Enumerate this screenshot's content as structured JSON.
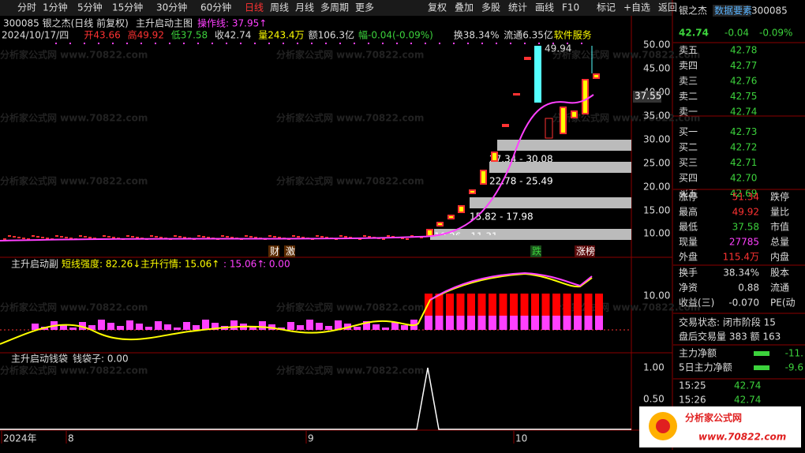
{
  "toolbar": {
    "periods": [
      "分时",
      "1分钟",
      "5分钟",
      "15分钟",
      "30分钟",
      "60分钟",
      "日线",
      "周线",
      "月线",
      "多周期",
      "更多"
    ],
    "tools": [
      "复权",
      "叠加",
      "多股",
      "统计",
      "画线",
      "F10",
      "标记",
      "+自选",
      "返回"
    ]
  },
  "header": {
    "code_name": "300085 银之杰(日线 前复权)",
    "indicator": "主升启动主图",
    "op_label": "操作线: 37.95↑",
    "info": [
      "2024/10/17/四",
      "开43.66",
      "高49.92",
      "低37.58",
      "收42.74",
      "量243.4万",
      "额106.3亿",
      "幅-0.04(-0.09%)",
      "换38.34%",
      "流通6.35亿",
      "软件服务"
    ]
  },
  "main": {
    "yticks": [
      "50.00",
      "45.00",
      "40.00",
      "35.00",
      "30.00",
      "25.00",
      "20.00",
      "15.00",
      "10.00"
    ],
    "price_tag": "37.55",
    "peak": "49.94",
    "zones": [
      "27.34 - 30.08",
      "22.78 - 25.49",
      "15.82 - 17.98",
      "10.26 - 11.31"
    ],
    "tags": [
      "财",
      "激",
      "跌",
      "涨榜"
    ]
  },
  "sub1": {
    "title": "主升启动副",
    "items": [
      "短线强度: 82.26↓",
      "主升行情: 15.06↑",
      ": 15.06↑",
      ": 0.00"
    ],
    "ytick": "10.00"
  },
  "sub2": {
    "title": "主升启动钱袋",
    "item": "钱袋子: 0.00",
    "yticks": [
      "1.00",
      "0.50"
    ]
  },
  "xaxis": [
    "2024年",
    "8",
    "9",
    "10"
  ],
  "watermark": "分析家公式网 www.70822.com",
  "quote": {
    "name": "银之杰",
    "tag": "数据要素",
    "code": "300085",
    "price": "42.74",
    "change": "-0.04",
    "pct": "-0.09%"
  },
  "book": [
    [
      "卖五",
      "42.78"
    ],
    [
      "卖四",
      "42.77"
    ],
    [
      "卖三",
      "42.76"
    ],
    [
      "卖二",
      "42.75"
    ],
    [
      "卖一",
      "42.74"
    ],
    [
      "买一",
      "42.73"
    ],
    [
      "买二",
      "42.72"
    ],
    [
      "买三",
      "42.71"
    ],
    [
      "买四",
      "42.70"
    ],
    [
      "买五",
      "42.69"
    ]
  ],
  "stats": [
    [
      "涨停",
      "51.34",
      "跌停"
    ],
    [
      "最高",
      "49.92",
      "量比"
    ],
    [
      "最低",
      "37.58",
      "市值"
    ],
    [
      "现量",
      "27785",
      "总量"
    ],
    [
      "外盘",
      "115.4万",
      "内盘"
    ]
  ],
  "stats2": [
    [
      "换手",
      "38.34%",
      "股本"
    ],
    [
      "净资",
      "0.88",
      "流通"
    ],
    [
      "收益(三)",
      "-0.070",
      "PE(动"
    ]
  ],
  "status": [
    "交易状态: 闭市阶段 15",
    "盘后交易量 383 额 163"
  ],
  "flow": [
    [
      "主力净额",
      "-11."
    ],
    [
      "5日主力净额",
      "-9.6"
    ]
  ],
  "trades": [
    [
      "15:25",
      "42.74"
    ],
    [
      "15:26",
      "42.74"
    ]
  ],
  "logo": {
    "name": "分析家公式网",
    "url": "www.70822.com"
  }
}
